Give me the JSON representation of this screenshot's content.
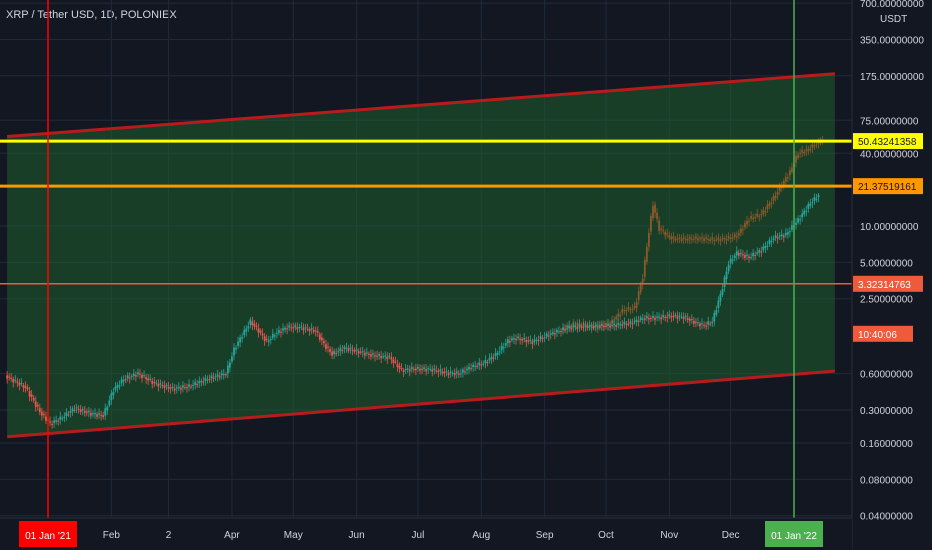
{
  "header": {
    "title": "XRP / Tether USD, 1D, POLONIEX"
  },
  "chart_data": {
    "type": "candlestick",
    "title": "XRP / Tether USD, 1D, POLONIEX",
    "y_scale": "log",
    "y_unit": "USDT",
    "y_ticks": [
      {
        "v": 700,
        "label": "700.00000000"
      },
      {
        "v": 350,
        "label": "350.00000000"
      },
      {
        "v": 175,
        "label": "175.00000000"
      },
      {
        "v": 75,
        "label": "75.00000000"
      },
      {
        "v": 40,
        "label": "40.00000000"
      },
      {
        "v": 10,
        "label": "10.00000000"
      },
      {
        "v": 5,
        "label": "5.00000000"
      },
      {
        "v": 2.5,
        "label": "2.50000000"
      },
      {
        "v": 0.6,
        "label": "0.60000000"
      },
      {
        "v": 0.3,
        "label": "0.30000000"
      },
      {
        "v": 0.16,
        "label": "0.16000000"
      },
      {
        "v": 0.08,
        "label": "0.08000000"
      },
      {
        "v": 0.04,
        "label": "0.04000000"
      }
    ],
    "x_ticks": [
      {
        "label": "Feb",
        "day": 31
      },
      {
        "label": "2",
        "day": 59
      },
      {
        "label": "Apr",
        "day": 90
      },
      {
        "label": "May",
        "day": 120
      },
      {
        "label": "Jun",
        "day": 151
      },
      {
        "label": "Jul",
        "day": 181
      },
      {
        "label": "Aug",
        "day": 212
      },
      {
        "label": "Sep",
        "day": 243
      },
      {
        "label": "Oct",
        "day": 273
      },
      {
        "label": "Nov",
        "day": 304
      },
      {
        "label": "Dec",
        "day": 334
      }
    ],
    "markers": [
      {
        "label": "01 Jan '21",
        "day": 0,
        "color": "#ff0000"
      },
      {
        "label": "01 Jan '22",
        "day": 365,
        "color": "#4caf50"
      }
    ],
    "price_levels": [
      {
        "value": 50.43241358,
        "label": "50.43241358",
        "color": "#ffff00",
        "text_color": "#131722"
      },
      {
        "value": 21.37519161,
        "label": "21.37519161",
        "color": "#ff9800",
        "text_color": "#131722"
      },
      {
        "value": 3.32314763,
        "label": "3.32314763",
        "color": "#f05a3c",
        "text_color": "#ffffff"
      }
    ],
    "countdown": {
      "label": "10:40:06",
      "color": "#f05a3c"
    },
    "channel": {
      "upper": [
        {
          "day": -20,
          "value": 55
        },
        {
          "day": 385,
          "value": 182
        }
      ],
      "lower": [
        {
          "day": -20,
          "value": 0.18
        },
        {
          "day": 385,
          "value": 0.63
        }
      ],
      "line_color": "#b71c1c",
      "fill_color": "#1e5f2e"
    },
    "series": [
      {
        "name": "",
        "color_up": "#26a69a",
        "color_down": "#ef5350",
        "points": [
          {
            "day": -20,
            "value": 0.58
          },
          {
            "day": -10,
            "value": 0.46
          },
          {
            "day": -3,
            "value": 0.29
          },
          {
            "day": 2,
            "value": 0.23
          },
          {
            "day": 8,
            "value": 0.26
          },
          {
            "day": 14,
            "value": 0.31
          },
          {
            "day": 22,
            "value": 0.28
          },
          {
            "day": 28,
            "value": 0.27
          },
          {
            "day": 33,
            "value": 0.44
          },
          {
            "day": 38,
            "value": 0.54
          },
          {
            "day": 45,
            "value": 0.6
          },
          {
            "day": 53,
            "value": 0.5
          },
          {
            "day": 62,
            "value": 0.45
          },
          {
            "day": 70,
            "value": 0.47
          },
          {
            "day": 80,
            "value": 0.55
          },
          {
            "day": 88,
            "value": 0.6
          },
          {
            "day": 92,
            "value": 0.95
          },
          {
            "day": 96,
            "value": 1.25
          },
          {
            "day": 100,
            "value": 1.62
          },
          {
            "day": 104,
            "value": 1.36
          },
          {
            "day": 108,
            "value": 1.1
          },
          {
            "day": 112,
            "value": 1.28
          },
          {
            "day": 118,
            "value": 1.45
          },
          {
            "day": 124,
            "value": 1.45
          },
          {
            "day": 128,
            "value": 1.4
          },
          {
            "day": 132,
            "value": 1.35
          },
          {
            "day": 136,
            "value": 1.05
          },
          {
            "day": 140,
            "value": 0.87
          },
          {
            "day": 146,
            "value": 0.98
          },
          {
            "day": 152,
            "value": 0.92
          },
          {
            "day": 160,
            "value": 0.85
          },
          {
            "day": 168,
            "value": 0.82
          },
          {
            "day": 174,
            "value": 0.64
          },
          {
            "day": 180,
            "value": 0.66
          },
          {
            "day": 188,
            "value": 0.65
          },
          {
            "day": 196,
            "value": 0.61
          },
          {
            "day": 202,
            "value": 0.6
          },
          {
            "day": 208,
            "value": 0.68
          },
          {
            "day": 214,
            "value": 0.73
          },
          {
            "day": 220,
            "value": 0.86
          },
          {
            "day": 226,
            "value": 1.12
          },
          {
            "day": 230,
            "value": 1.18
          },
          {
            "day": 238,
            "value": 1.1
          },
          {
            "day": 246,
            "value": 1.26
          },
          {
            "day": 256,
            "value": 1.45
          },
          {
            "day": 266,
            "value": 1.48
          },
          {
            "day": 276,
            "value": 1.5
          },
          {
            "day": 286,
            "value": 1.57
          },
          {
            "day": 292,
            "value": 1.72
          },
          {
            "day": 300,
            "value": 1.75
          },
          {
            "day": 306,
            "value": 1.8
          },
          {
            "day": 312,
            "value": 1.76
          },
          {
            "day": 318,
            "value": 1.58
          },
          {
            "day": 322,
            "value": 1.5
          },
          {
            "day": 326,
            "value": 1.62
          },
          {
            "day": 330,
            "value": 2.7
          },
          {
            "day": 334,
            "value": 4.9
          },
          {
            "day": 338,
            "value": 6.0
          },
          {
            "day": 344,
            "value": 5.5
          },
          {
            "day": 350,
            "value": 6.3
          },
          {
            "day": 356,
            "value": 8.0
          },
          {
            "day": 362,
            "value": 8.5
          },
          {
            "day": 368,
            "value": 11.2
          },
          {
            "day": 374,
            "value": 15.5
          },
          {
            "day": 378,
            "value": 18.0
          }
        ]
      },
      {
        "name": "",
        "color": "#8b5a2b",
        "points": [
          {
            "day": 252,
            "value": 1.4
          },
          {
            "day": 260,
            "value": 1.55
          },
          {
            "day": 268,
            "value": 1.45
          },
          {
            "day": 276,
            "value": 1.55
          },
          {
            "day": 282,
            "value": 2.0
          },
          {
            "day": 288,
            "value": 2.1
          },
          {
            "day": 292,
            "value": 3.8
          },
          {
            "day": 295,
            "value": 9.0
          },
          {
            "day": 297,
            "value": 15.0
          },
          {
            "day": 300,
            "value": 9.5
          },
          {
            "day": 306,
            "value": 7.9
          },
          {
            "day": 312,
            "value": 7.8
          },
          {
            "day": 320,
            "value": 7.9
          },
          {
            "day": 326,
            "value": 7.7
          },
          {
            "day": 332,
            "value": 7.8
          },
          {
            "day": 338,
            "value": 8.3
          },
          {
            "day": 344,
            "value": 11.5
          },
          {
            "day": 350,
            "value": 12.5
          },
          {
            "day": 356,
            "value": 17.0
          },
          {
            "day": 360,
            "value": 22.0
          },
          {
            "day": 364,
            "value": 28.0
          },
          {
            "day": 368,
            "value": 40.0
          },
          {
            "day": 372,
            "value": 42.0
          },
          {
            "day": 376,
            "value": 47.0
          },
          {
            "day": 380,
            "value": 52.0
          }
        ]
      }
    ]
  }
}
